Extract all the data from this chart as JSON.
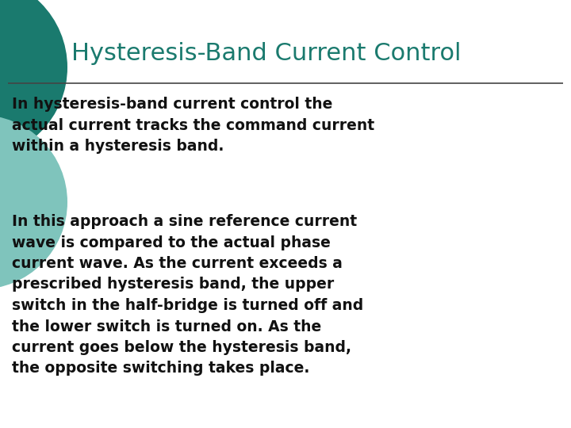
{
  "title": "Hysteresis-Band Current Control",
  "title_color": "#1a7a6e",
  "title_fontsize": 22,
  "background_color": "#ffffff",
  "line_color": "#444444",
  "text_color": "#111111",
  "text_fontsize": 13.5,
  "paragraph1": "In hysteresis-band current control the\nactual current tracks the command current\nwithin a hysteresis band.",
  "paragraph2": "In this approach a sine reference current\nwave is compared to the actual phase\ncurrent wave. As the current exceeds a\nprescribed hysteresis band, the upper\nswitch in the half-bridge is turned off and\nthe lower switch is turned on. As the\ncurrent goes below the hysteresis band,\nthe opposite switching takes place.",
  "circle_color_dark": "#1a7a6e",
  "circle_color_light": "#7fc4bc",
  "figsize": [
    7.2,
    5.4
  ],
  "dpi": 100
}
